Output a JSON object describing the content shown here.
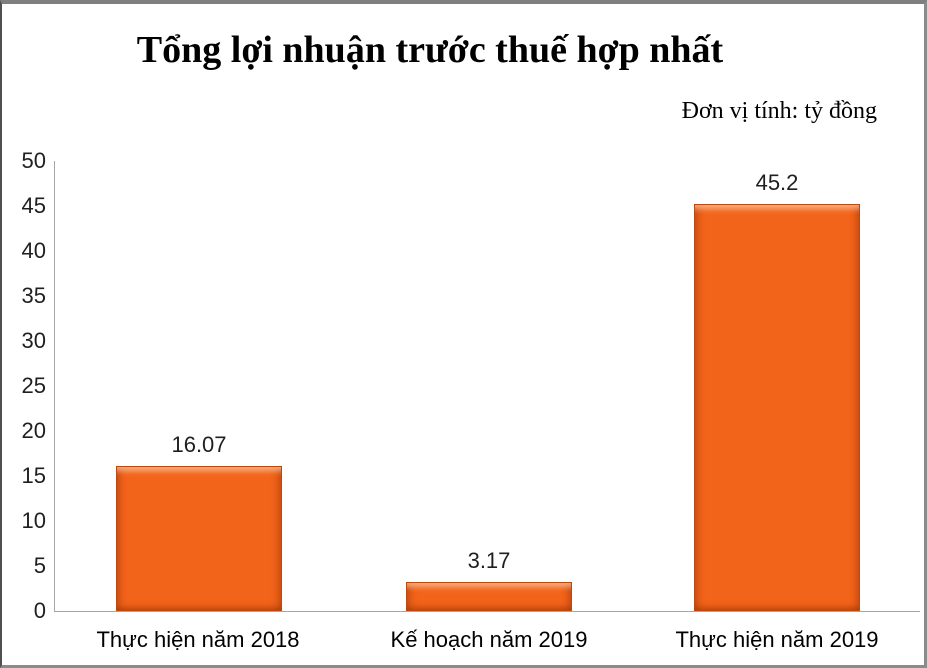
{
  "chart": {
    "title": "Tổng lợi nhuận trước thuế hợp nhất",
    "unit_label": "Đơn vị tính: tỷ đồng"
  },
  "chart_data": {
    "type": "bar",
    "title": "Tổng lợi nhuận trước thuế hợp nhất",
    "subtitle": "Đơn vị tính: tỷ đồng",
    "categories": [
      "Thực hiện năm 2018",
      "Kế hoạch năm 2019",
      "Thực hiện năm 2019"
    ],
    "values": [
      16.07,
      3.17,
      45.2
    ],
    "value_labels": [
      "16.07",
      "3.17",
      "45.2"
    ],
    "yticks": [
      "50",
      "45",
      "40",
      "35",
      "30",
      "25",
      "20",
      "15",
      "10",
      "5",
      "0"
    ],
    "ylim": [
      0,
      50
    ],
    "ytick_step": 5,
    "grid": false,
    "legend": false,
    "bar_color": "#f3641b",
    "bar_edge_color": "#bd4a0c",
    "axis_color": "#a6a6a6",
    "text_color": "#000000"
  }
}
